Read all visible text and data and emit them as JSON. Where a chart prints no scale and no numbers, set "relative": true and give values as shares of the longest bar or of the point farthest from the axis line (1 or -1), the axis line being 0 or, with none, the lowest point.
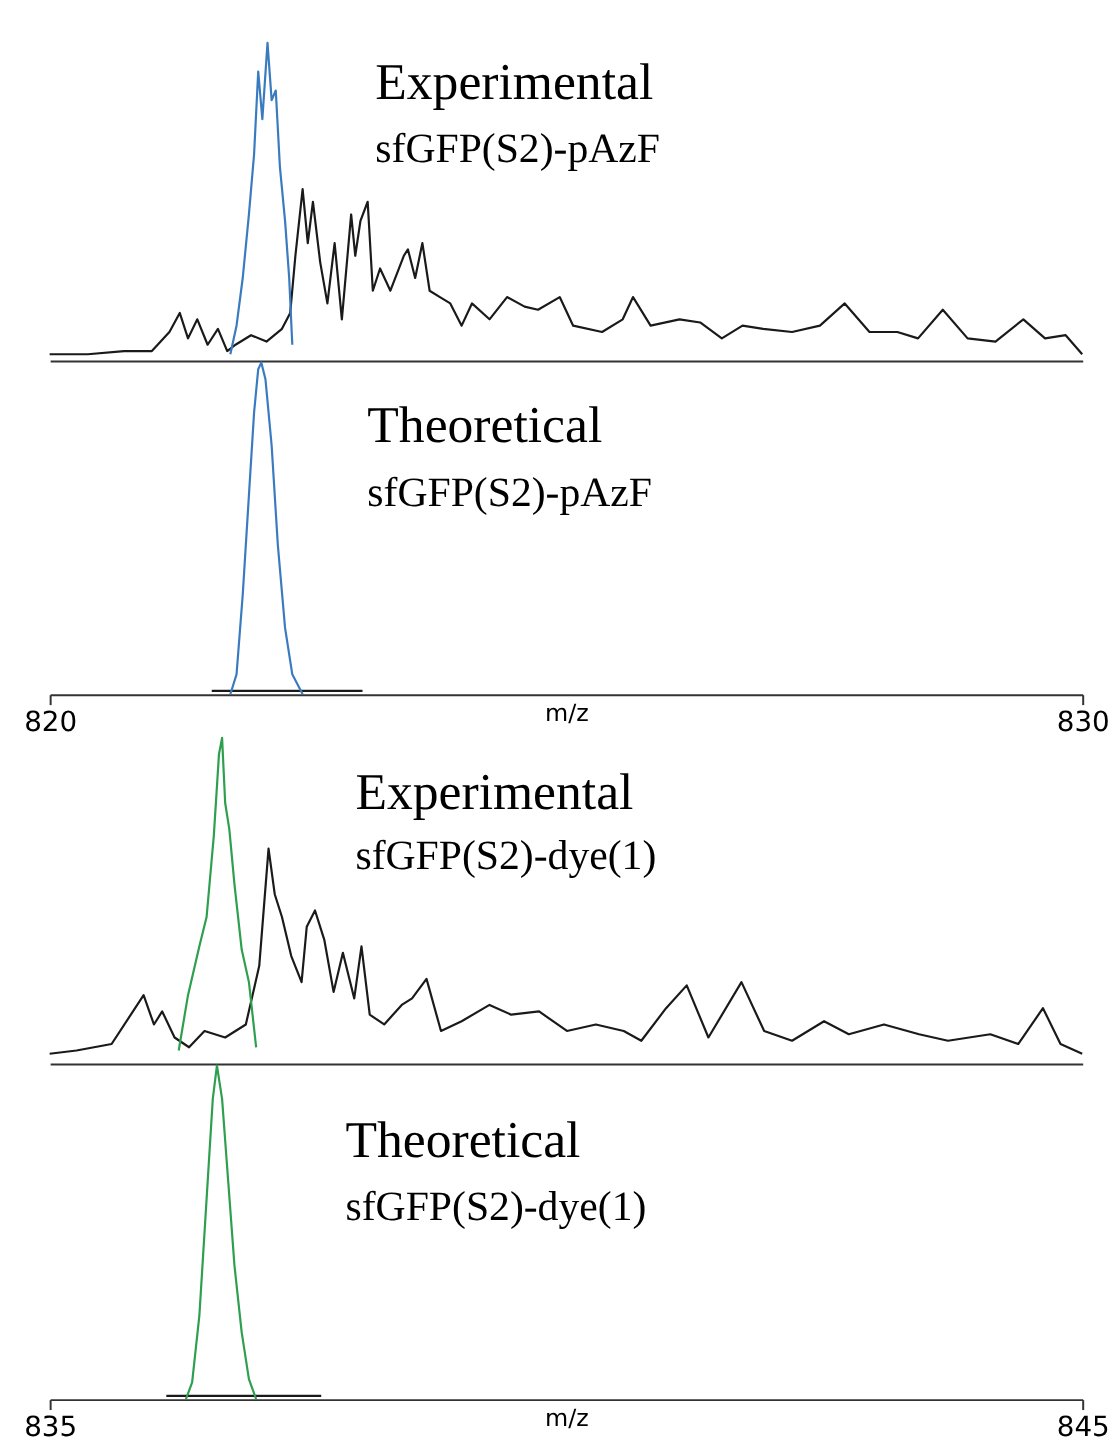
{
  "chart_data": [
    {
      "type": "line",
      "relative": true,
      "xlim": [
        820,
        830
      ],
      "xticks": [
        820,
        830
      ],
      "tick_labels": false,
      "annotations": [
        "Experimental",
        "sfGFP(S2)-pAzF"
      ],
      "series": [
        {
          "color": "#1a1a1a",
          "x": [
            820.0,
            820.37,
            820.72,
            820.99,
            821.16,
            821.26,
            821.34,
            821.43,
            821.53,
            821.63,
            821.72,
            821.8,
            821.95,
            822.1,
            822.25,
            822.33,
            822.38,
            822.45,
            822.5,
            822.55,
            822.62,
            822.69,
            822.76,
            822.83,
            822.92,
            822.96,
            823.01,
            823.08,
            823.13,
            823.2,
            823.3,
            823.43,
            823.47,
            823.54,
            823.61,
            823.68,
            823.78,
            823.88,
            823.99,
            824.09,
            824.26,
            824.43,
            824.6,
            824.73,
            824.94,
            825.07,
            825.35,
            825.55,
            825.65,
            825.82,
            826.1,
            826.3,
            826.51,
            826.71,
            826.91,
            827.19,
            827.46,
            827.7,
            827.94,
            828.21,
            828.41,
            828.65,
            828.89,
            829.16,
            829.43,
            829.64,
            829.84,
            830.0
          ],
          "values": [
            0.02,
            0.02,
            0.03,
            0.03,
            0.09,
            0.15,
            0.07,
            0.13,
            0.05,
            0.1,
            0.03,
            0.05,
            0.08,
            0.06,
            0.1,
            0.15,
            0.33,
            0.54,
            0.37,
            0.5,
            0.31,
            0.18,
            0.37,
            0.13,
            0.46,
            0.33,
            0.44,
            0.5,
            0.22,
            0.29,
            0.22,
            0.33,
            0.35,
            0.26,
            0.37,
            0.22,
            0.2,
            0.18,
            0.11,
            0.18,
            0.13,
            0.2,
            0.17,
            0.16,
            0.2,
            0.11,
            0.09,
            0.13,
            0.2,
            0.11,
            0.13,
            0.12,
            0.07,
            0.11,
            0.1,
            0.09,
            0.11,
            0.18,
            0.09,
            0.09,
            0.07,
            0.16,
            0.07,
            0.06,
            0.13,
            0.07,
            0.08,
            0.02
          ]
        },
        {
          "color": "#3a7bc0",
          "x": [
            821.75,
            821.81,
            821.87,
            821.93,
            821.98,
            822.02,
            822.06,
            822.11,
            822.15,
            822.19,
            822.23,
            822.28,
            822.32,
            822.35
          ],
          "values": [
            0.02,
            0.11,
            0.26,
            0.46,
            0.65,
            0.91,
            0.76,
            1.0,
            0.82,
            0.85,
            0.61,
            0.44,
            0.26,
            0.05
          ]
        }
      ]
    },
    {
      "type": "line",
      "relative": true,
      "xlim": [
        820,
        830
      ],
      "xticks": [
        820,
        830
      ],
      "tick_labels": "x",
      "xlabel": "m/z",
      "annotations": [
        "Theoretical",
        "sfGFP(S2)-pAzF"
      ],
      "series": [
        {
          "color": "#1a1a1a",
          "x": [
            821.57,
            823.03
          ],
          "values": [
            0.01,
            0.01
          ]
        },
        {
          "color": "#3a7bc0",
          "x": [
            821.75,
            821.81,
            821.87,
            821.93,
            821.98,
            822.02,
            822.05,
            822.09,
            822.15,
            822.21,
            822.28,
            822.35,
            822.45
          ],
          "values": [
            0.0,
            0.06,
            0.3,
            0.6,
            0.85,
            0.98,
            1.0,
            0.95,
            0.75,
            0.45,
            0.2,
            0.06,
            0.0
          ]
        }
      ]
    },
    {
      "type": "line",
      "relative": true,
      "xlim": [
        835,
        845
      ],
      "xticks": [
        835,
        845
      ],
      "tick_labels": false,
      "annotations": [
        "Experimental",
        "sfGFP(S2)-dye(1)"
      ],
      "series": [
        {
          "color": "#1a1a1a",
          "x": [
            835.0,
            835.26,
            835.6,
            835.91,
            836.01,
            836.09,
            836.21,
            836.35,
            836.5,
            836.7,
            836.9,
            837.03,
            837.12,
            837.18,
            837.25,
            837.34,
            837.44,
            837.49,
            837.57,
            837.66,
            837.75,
            837.84,
            837.95,
            838.02,
            838.1,
            838.24,
            838.41,
            838.51,
            838.65,
            838.79,
            838.99,
            839.26,
            839.47,
            839.74,
            840.01,
            840.29,
            840.56,
            840.73,
            840.97,
            841.17,
            841.38,
            841.7,
            841.92,
            842.19,
            842.5,
            842.74,
            843.08,
            843.42,
            843.7,
            844.11,
            844.38,
            844.62,
            844.79,
            845.0
          ],
          "values": [
            0.03,
            0.04,
            0.06,
            0.21,
            0.12,
            0.16,
            0.08,
            0.05,
            0.1,
            0.08,
            0.12,
            0.3,
            0.66,
            0.52,
            0.45,
            0.33,
            0.25,
            0.42,
            0.47,
            0.38,
            0.22,
            0.34,
            0.2,
            0.36,
            0.15,
            0.12,
            0.18,
            0.2,
            0.26,
            0.1,
            0.13,
            0.18,
            0.15,
            0.16,
            0.1,
            0.12,
            0.1,
            0.07,
            0.17,
            0.24,
            0.08,
            0.25,
            0.1,
            0.07,
            0.13,
            0.09,
            0.12,
            0.09,
            0.07,
            0.09,
            0.06,
            0.17,
            0.06,
            0.03
          ]
        },
        {
          "color": "#2e9e4f",
          "x": [
            836.25,
            836.34,
            836.45,
            836.52,
            836.59,
            836.64,
            836.67,
            836.7,
            836.74,
            836.79,
            836.86,
            836.93,
            837.0
          ],
          "values": [
            0.04,
            0.21,
            0.36,
            0.45,
            0.7,
            0.95,
            1.0,
            0.8,
            0.72,
            0.55,
            0.35,
            0.25,
            0.05
          ]
        }
      ]
    },
    {
      "type": "line",
      "relative": true,
      "xlim": [
        835,
        845
      ],
      "xticks": [
        835,
        845
      ],
      "tick_labels": "x",
      "xlabel": "m/z",
      "annotations": [
        "Theoretical",
        "sfGFP(S2)-dye(1)"
      ],
      "series": [
        {
          "color": "#1a1a1a",
          "x": [
            836.13,
            837.63
          ],
          "values": [
            0.01,
            0.01
          ]
        },
        {
          "color": "#2e9e4f",
          "x": [
            836.32,
            836.38,
            836.45,
            836.52,
            836.58,
            836.62,
            836.67,
            836.73,
            836.79,
            836.86,
            836.93,
            837.0
          ],
          "values": [
            0.0,
            0.05,
            0.25,
            0.6,
            0.9,
            1.0,
            0.9,
            0.65,
            0.4,
            0.2,
            0.06,
            0.0
          ]
        }
      ]
    }
  ]
}
